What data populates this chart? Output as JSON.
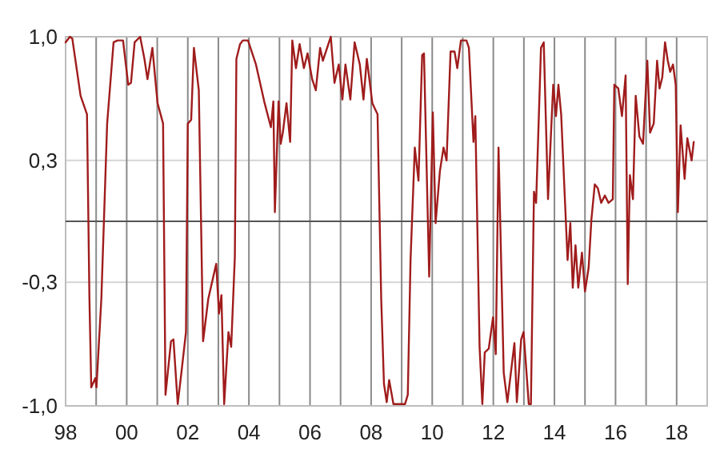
{
  "chart_data": {
    "type": "line",
    "x": [
      1998.0,
      1998.14,
      1998.22,
      1998.49,
      1998.7,
      1998.78,
      1998.84,
      1998.97,
      1999.01,
      1999.17,
      1999.36,
      1999.57,
      1999.7,
      1999.88,
      2000.05,
      2000.14,
      2000.26,
      2000.44,
      2000.58,
      2000.68,
      2000.84,
      2001.01,
      2001.19,
      2001.27,
      2001.45,
      2001.53,
      2001.67,
      2001.79,
      2001.94,
      2002.0,
      2002.11,
      2002.2,
      2002.36,
      2002.5,
      2002.67,
      2002.93,
      2003.02,
      2003.1,
      2003.19,
      2003.33,
      2003.42,
      2003.54,
      2003.59,
      2003.71,
      2003.8,
      2003.97,
      2004.23,
      2004.5,
      2004.72,
      2004.8,
      2004.85,
      2004.97,
      2005.04,
      2005.11,
      2005.23,
      2005.35,
      2005.42,
      2005.54,
      2005.66,
      2005.8,
      2005.92,
      2006.07,
      2006.19,
      2006.33,
      2006.42,
      2006.68,
      2006.8,
      2006.94,
      2007.06,
      2007.16,
      2007.32,
      2007.46,
      2007.63,
      2007.75,
      2007.86,
      2008.04,
      2008.21,
      2008.33,
      2008.42,
      2008.51,
      2008.59,
      2008.73,
      2009.11,
      2009.2,
      2009.29,
      2009.43,
      2009.55,
      2009.67,
      2009.73,
      2009.9,
      2010.02,
      2010.11,
      2010.25,
      2010.37,
      2010.47,
      2010.6,
      2010.73,
      2010.82,
      2010.94,
      2011.12,
      2011.2,
      2011.35,
      2011.41,
      2011.55,
      2011.64,
      2011.72,
      2011.85,
      2011.99,
      2012.08,
      2012.17,
      2012.34,
      2012.46,
      2012.69,
      2012.77,
      2012.91,
      2012.99,
      2013.16,
      2013.23,
      2013.33,
      2013.4,
      2013.56,
      2013.65,
      2013.79,
      2013.96,
      2014.05,
      2014.13,
      2014.22,
      2014.43,
      2014.52,
      2014.6,
      2014.69,
      2014.78,
      2014.9,
      2015.0,
      2015.12,
      2015.21,
      2015.32,
      2015.42,
      2015.53,
      2015.65,
      2015.77,
      2015.91,
      2015.96,
      2016.09,
      2016.21,
      2016.33,
      2016.4,
      2016.47,
      2016.57,
      2016.66,
      2016.78,
      2016.9,
      2017.04,
      2017.13,
      2017.25,
      2017.36,
      2017.44,
      2017.53,
      2017.62,
      2017.71,
      2017.79,
      2017.88,
      2017.97,
      2018.04,
      2018.13,
      2018.26,
      2018.35,
      2018.49,
      2018.56
    ],
    "series": [
      {
        "color": "#a01c1c",
        "values": [
          0.97,
          1.0,
          0.99,
          0.68,
          0.58,
          -0.42,
          -0.9,
          -0.85,
          -0.9,
          -0.42,
          0.53,
          0.97,
          0.98,
          0.98,
          0.74,
          0.75,
          0.97,
          1.0,
          0.88,
          0.77,
          0.94,
          0.64,
          0.53,
          -0.94,
          -0.65,
          -0.64,
          -0.99,
          -0.82,
          -0.6,
          0.53,
          0.55,
          0.94,
          0.71,
          -0.65,
          -0.42,
          -0.23,
          -0.5,
          -0.4,
          -0.99,
          -0.6,
          -0.68,
          -0.19,
          0.88,
          0.96,
          0.98,
          0.98,
          0.85,
          0.65,
          0.51,
          0.65,
          0.05,
          0.65,
          0.42,
          0.48,
          0.64,
          0.43,
          0.98,
          0.83,
          0.96,
          0.83,
          0.91,
          0.77,
          0.71,
          0.94,
          0.87,
          1.0,
          0.75,
          0.85,
          0.66,
          0.85,
          0.66,
          0.97,
          0.85,
          0.66,
          0.88,
          0.64,
          0.58,
          -0.42,
          -0.88,
          -0.98,
          -0.86,
          -0.99,
          -0.99,
          -0.94,
          -0.21,
          0.4,
          0.22,
          0.9,
          0.91,
          -0.3,
          0.59,
          -0.01,
          0.27,
          0.4,
          0.33,
          0.92,
          0.92,
          0.83,
          0.98,
          0.98,
          0.94,
          0.43,
          0.57,
          -0.68,
          -0.99,
          -0.71,
          -0.69,
          -0.52,
          -0.72,
          0.4,
          -0.82,
          -0.98,
          -0.66,
          -0.98,
          -0.64,
          -0.6,
          -0.99,
          -0.99,
          0.16,
          0.1,
          0.94,
          0.97,
          0.12,
          0.74,
          0.57,
          0.74,
          0.58,
          -0.21,
          -0.01,
          -0.36,
          -0.13,
          -0.36,
          -0.17,
          -0.38,
          -0.25,
          0.01,
          0.2,
          0.18,
          0.1,
          0.14,
          0.1,
          0.12,
          0.74,
          0.72,
          0.57,
          0.79,
          -0.34,
          0.25,
          0.12,
          0.68,
          0.46,
          0.42,
          0.87,
          0.48,
          0.53,
          0.87,
          0.72,
          0.78,
          0.97,
          0.87,
          0.81,
          0.85,
          0.74,
          0.05,
          0.52,
          0.23,
          0.45,
          0.33,
          0.43
        ]
      }
    ],
    "xlim": [
      1998,
      2019
    ],
    "xticks": [
      {
        "value": 1998,
        "label": "98"
      },
      {
        "value": 1999,
        "label": null
      },
      {
        "value": 2000,
        "label": "00"
      },
      {
        "value": 2001,
        "label": null
      },
      {
        "value": 2002,
        "label": "02"
      },
      {
        "value": 2003,
        "label": null
      },
      {
        "value": 2004,
        "label": "04"
      },
      {
        "value": 2005,
        "label": null
      },
      {
        "value": 2006,
        "label": "06"
      },
      {
        "value": 2007,
        "label": null
      },
      {
        "value": 2008,
        "label": "08"
      },
      {
        "value": 2009,
        "label": null
      },
      {
        "value": 2010,
        "label": "10"
      },
      {
        "value": 2011,
        "label": null
      },
      {
        "value": 2012,
        "label": "12"
      },
      {
        "value": 2013,
        "label": null
      },
      {
        "value": 2014,
        "label": "14"
      },
      {
        "value": 2015,
        "label": null
      },
      {
        "value": 2016,
        "label": "16"
      },
      {
        "value": 2017,
        "label": null
      },
      {
        "value": 2018,
        "label": "18"
      }
    ],
    "ylim": [
      -1,
      1
    ],
    "yticks": [
      {
        "value": -1,
        "label": "-1,0"
      },
      {
        "value": -0.33,
        "label": "-0,3"
      },
      {
        "value": 0.33,
        "label": "0,3"
      },
      {
        "value": 1,
        "label": "1,0"
      }
    ],
    "grid": true,
    "ref_lines": [
      {
        "axis": "y",
        "value": 0,
        "color": "#555555"
      }
    ],
    "marker": "none",
    "line_style": "solid"
  }
}
